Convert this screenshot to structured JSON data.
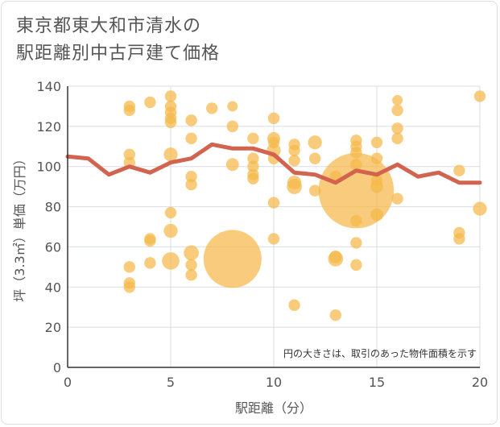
{
  "chart_data": {
    "type": "scatter",
    "title_line1": "東京都東大和市清水の",
    "title_line2": "駅距離別中古戸建て価格",
    "xlabel": "駅距離（分）",
    "ylabel": "坪（3.3㎡）単価（万円）",
    "note": "円の大きさは、取引のあった物件面積を示す",
    "xlim": [
      0,
      20
    ],
    "ylim": [
      0,
      140
    ],
    "x_ticks": [
      0,
      5,
      10,
      15,
      20
    ],
    "y_ticks": [
      0,
      20,
      40,
      60,
      80,
      100,
      120,
      140
    ],
    "grid": true,
    "colors": {
      "bubble": "#f5b84a",
      "line": "#d2634f",
      "grid": "#d9dde3"
    },
    "points": [
      {
        "x": 3,
        "y": 130,
        "s": 1
      },
      {
        "x": 3,
        "y": 128,
        "s": 1
      },
      {
        "x": 3,
        "y": 106,
        "s": 1
      },
      {
        "x": 3,
        "y": 102,
        "s": 1
      },
      {
        "x": 3,
        "y": 50,
        "s": 1
      },
      {
        "x": 3,
        "y": 42,
        "s": 1
      },
      {
        "x": 3,
        "y": 40,
        "s": 1
      },
      {
        "x": 4,
        "y": 132,
        "s": 1
      },
      {
        "x": 4,
        "y": 64,
        "s": 1
      },
      {
        "x": 4,
        "y": 63,
        "s": 1
      },
      {
        "x": 4,
        "y": 52,
        "s": 1
      },
      {
        "x": 5,
        "y": 135,
        "s": 1
      },
      {
        "x": 5,
        "y": 130,
        "s": 1
      },
      {
        "x": 5,
        "y": 127,
        "s": 1
      },
      {
        "x": 5,
        "y": 124,
        "s": 1
      },
      {
        "x": 5,
        "y": 122,
        "s": 1
      },
      {
        "x": 5,
        "y": 106,
        "s": 1.2
      },
      {
        "x": 5,
        "y": 77,
        "s": 1
      },
      {
        "x": 5,
        "y": 68,
        "s": 1.2
      },
      {
        "x": 5,
        "y": 53,
        "s": 1.5
      },
      {
        "x": 6,
        "y": 123,
        "s": 1
      },
      {
        "x": 6,
        "y": 114,
        "s": 1
      },
      {
        "x": 6,
        "y": 95,
        "s": 1
      },
      {
        "x": 6,
        "y": 91,
        "s": 1
      },
      {
        "x": 6,
        "y": 57,
        "s": 1.3
      },
      {
        "x": 6,
        "y": 51,
        "s": 1
      },
      {
        "x": 6,
        "y": 46,
        "s": 1
      },
      {
        "x": 7,
        "y": 129,
        "s": 1
      },
      {
        "x": 8,
        "y": 130,
        "s": 0.9
      },
      {
        "x": 8,
        "y": 120,
        "s": 1
      },
      {
        "x": 8,
        "y": 101,
        "s": 1.1
      },
      {
        "x": 8,
        "y": 54,
        "s": 5
      },
      {
        "x": 9,
        "y": 114,
        "s": 1
      },
      {
        "x": 9,
        "y": 104,
        "s": 1
      },
      {
        "x": 9,
        "y": 100,
        "s": 1
      },
      {
        "x": 9,
        "y": 96,
        "s": 1
      },
      {
        "x": 9,
        "y": 94,
        "s": 1
      },
      {
        "x": 10,
        "y": 124,
        "s": 1
      },
      {
        "x": 10,
        "y": 114,
        "s": 1.1
      },
      {
        "x": 10,
        "y": 112,
        "s": 1
      },
      {
        "x": 10,
        "y": 108,
        "s": 1.2
      },
      {
        "x": 10,
        "y": 104,
        "s": 1
      },
      {
        "x": 10,
        "y": 82,
        "s": 1
      },
      {
        "x": 10,
        "y": 64,
        "s": 1
      },
      {
        "x": 11,
        "y": 111,
        "s": 1
      },
      {
        "x": 11,
        "y": 108,
        "s": 1
      },
      {
        "x": 11,
        "y": 103,
        "s": 1
      },
      {
        "x": 11,
        "y": 92,
        "s": 1.2
      },
      {
        "x": 11,
        "y": 90,
        "s": 1.3
      },
      {
        "x": 11,
        "y": 31,
        "s": 1
      },
      {
        "x": 12,
        "y": 112,
        "s": 1.2
      },
      {
        "x": 12,
        "y": 104,
        "s": 1
      },
      {
        "x": 12,
        "y": 88,
        "s": 1
      },
      {
        "x": 13,
        "y": 95,
        "s": 1
      },
      {
        "x": 13,
        "y": 55,
        "s": 1.1
      },
      {
        "x": 13,
        "y": 54,
        "s": 1.3
      },
      {
        "x": 13,
        "y": 26,
        "s": 1
      },
      {
        "x": 14,
        "y": 113,
        "s": 1
      },
      {
        "x": 14,
        "y": 110,
        "s": 1
      },
      {
        "x": 14,
        "y": 107,
        "s": 1
      },
      {
        "x": 14,
        "y": 101,
        "s": 1
      },
      {
        "x": 14,
        "y": 88,
        "s": 6.5
      },
      {
        "x": 14,
        "y": 73,
        "s": 1
      },
      {
        "x": 14,
        "y": 62,
        "s": 1
      },
      {
        "x": 14,
        "y": 51,
        "s": 1
      },
      {
        "x": 15,
        "y": 112,
        "s": 1
      },
      {
        "x": 15,
        "y": 104,
        "s": 1
      },
      {
        "x": 15,
        "y": 93,
        "s": 1
      },
      {
        "x": 15,
        "y": 90,
        "s": 1.1
      },
      {
        "x": 15,
        "y": 76,
        "s": 1.1
      },
      {
        "x": 16,
        "y": 133,
        "s": 0.9
      },
      {
        "x": 16,
        "y": 128,
        "s": 1
      },
      {
        "x": 16,
        "y": 119,
        "s": 1
      },
      {
        "x": 16,
        "y": 114,
        "s": 1
      },
      {
        "x": 16,
        "y": 84,
        "s": 1
      },
      {
        "x": 19,
        "y": 98,
        "s": 1
      },
      {
        "x": 19,
        "y": 67,
        "s": 1
      },
      {
        "x": 19,
        "y": 64,
        "s": 1
      },
      {
        "x": 20,
        "y": 135,
        "s": 1
      },
      {
        "x": 20,
        "y": 79,
        "s": 1.2
      }
    ],
    "trend": {
      "x": [
        0,
        1,
        2,
        3,
        4,
        5,
        6,
        7,
        8,
        9,
        10,
        11,
        12,
        13,
        14,
        15,
        16,
        17,
        18,
        19,
        20
      ],
      "y": [
        105,
        104,
        96,
        100,
        97,
        102,
        104,
        111,
        109,
        109,
        106,
        97,
        96,
        92,
        98,
        96,
        101,
        95,
        97,
        92,
        92
      ]
    }
  }
}
